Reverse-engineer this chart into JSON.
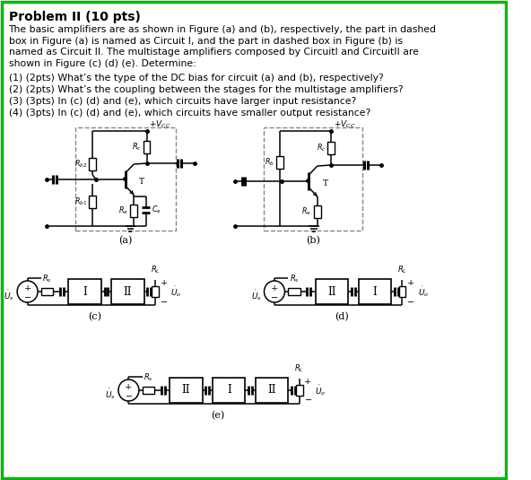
{
  "title": "Problem II (10 pts)",
  "border_color": "#00bb00",
  "bg_color": "#ffffff",
  "body_text": [
    "The basic amplifiers are as shown in Figure (a) and (b), respectively, the part in dashed",
    "box in Figure (a) is named as Circuit I, and the part in dashed box in Figure (b) is",
    "named as Circuit II. The multistage amplifiers composed by CircuitI and CircuitII are",
    "shown in Figure (c) (d) (e). Determine:"
  ],
  "questions": [
    "(1) (2pts) What’s the type of the DC bias for circuit (a) and (b), respectively?",
    "(2) (2pts) What’s the coupling between the stages for the multistage amplifiers?",
    "(3) (3pts) In (c) (d) and (e), which circuits have larger input resistance?",
    "(4) (3pts) In (c) (d) and (e), which circuits have smaller output resistance?"
  ],
  "font_size_body": 7.8,
  "font_size_q": 7.8
}
